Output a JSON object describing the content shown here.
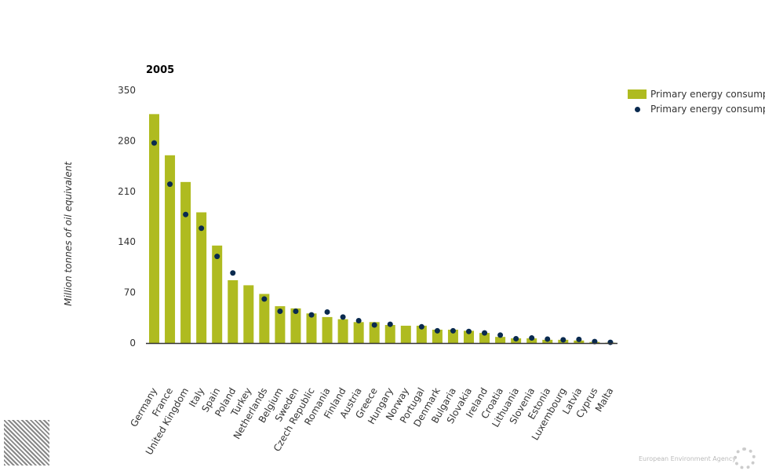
{
  "chart_data": {
    "type": "bar",
    "title": "2005",
    "ylabel": "Million tonnes of oil equivalent",
    "xlabel": "",
    "ylim": [
      0,
      350
    ],
    "yticks": [
      0,
      70,
      140,
      210,
      280,
      350
    ],
    "categories": [
      "Germany",
      "France",
      "United Kingdom",
      "Italy",
      "Spain",
      "Poland",
      "Turkey",
      "Netherlands",
      "Belgium",
      "Sweden",
      "Czech Republic",
      "Romania",
      "Finland",
      "Austria",
      "Greece",
      "Hungary",
      "Norway",
      "Portugal",
      "Denmark",
      "Bulgaria",
      "Slovakia",
      "Ireland",
      "Croatia",
      "Lithuania",
      "Slovenia",
      "Estonia",
      "Luxembourg",
      "Latvia",
      "Cyprus",
      "Malta"
    ],
    "series": [
      {
        "name": "Primary energy consump",
        "type": "bar",
        "color": "#afbb20",
        "values": [
          317,
          260,
          223,
          181,
          135,
          87,
          80,
          68,
          51,
          48,
          41,
          36,
          33,
          29,
          29,
          25,
          24,
          24,
          18.5,
          18.5,
          17,
          14,
          8.5,
          6.5,
          6.5,
          4.5,
          4.5,
          3.5,
          1.5,
          0.5
        ]
      },
      {
        "name": "Primary energy consump",
        "type": "scatter",
        "color": "#0a2a4f",
        "values": [
          277,
          220,
          178,
          159,
          120,
          97,
          null,
          61,
          44,
          44,
          39,
          43,
          36,
          31,
          25,
          26,
          null,
          22.5,
          17,
          17,
          16,
          14,
          11,
          6,
          7,
          5.5,
          4.5,
          5,
          2,
          1
        ]
      }
    ],
    "legend": "top-right"
  },
  "footer": {
    "agency": "European Environment Agency"
  }
}
